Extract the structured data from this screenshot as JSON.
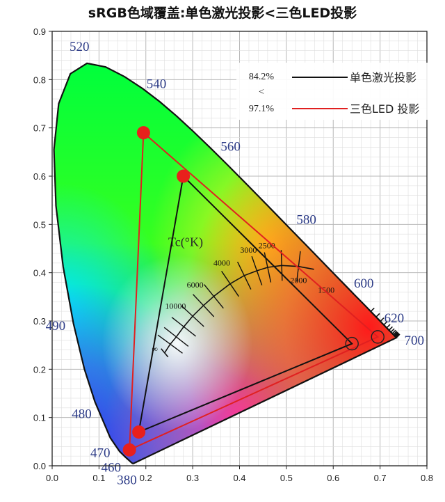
{
  "chart_data": {
    "type": "scatter",
    "title": "sRGB色域覆盖:单色激光投影<三色LED投影",
    "xlim": [
      0.0,
      0.8
    ],
    "ylim": [
      0.0,
      0.9
    ],
    "x_ticks": [
      "0.0",
      "0.1",
      "0.2",
      "0.3",
      "0.4",
      "0.5",
      "0.6",
      "0.7",
      "0.8"
    ],
    "y_ticks": [
      "0.0",
      "0.1",
      "0.2",
      "0.3",
      "0.4",
      "0.5",
      "0.6",
      "0.7",
      "0.8",
      "0.9"
    ],
    "grid": true,
    "legend_placement": "top-right",
    "colors": {
      "laser": "#111111",
      "led": "#e02020",
      "point": "#e8201c"
    },
    "annotation_lines": [
      "84.2%",
      "<",
      "97.1%"
    ],
    "series": [
      {
        "name": "单色激光投影",
        "color": "#111111",
        "points": [
          [
            0.28,
            0.6
          ],
          [
            0.64,
            0.253
          ],
          [
            0.185,
            0.07
          ]
        ]
      },
      {
        "name": "三色LED 投影",
        "color": "#e02020",
        "points": [
          [
            0.195,
            0.69
          ],
          [
            0.695,
            0.267
          ],
          [
            0.165,
            0.033
          ]
        ]
      }
    ],
    "spectral_locus": {
      "points": [
        [
          0.1741,
          0.005
        ],
        [
          0.1738,
          0.0049
        ],
        [
          0.1736,
          0.0049
        ],
        [
          0.1733,
          0.0048
        ],
        [
          0.1726,
          0.0048
        ],
        [
          0.1714,
          0.0051
        ],
        [
          0.1689,
          0.0069
        ],
        [
          0.1644,
          0.0109
        ],
        [
          0.1566,
          0.0177
        ],
        [
          0.144,
          0.0297
        ],
        [
          0.1241,
          0.0578
        ],
        [
          0.0913,
          0.1327
        ],
        [
          0.0687,
          0.2007
        ],
        [
          0.0454,
          0.295
        ],
        [
          0.0235,
          0.4127
        ],
        [
          0.0082,
          0.5384
        ],
        [
          0.0039,
          0.6548
        ],
        [
          0.0139,
          0.7502
        ],
        [
          0.0389,
          0.812
        ],
        [
          0.0743,
          0.8338
        ],
        [
          0.1142,
          0.8262
        ],
        [
          0.1547,
          0.8059
        ],
        [
          0.1929,
          0.7816
        ],
        [
          0.2296,
          0.7543
        ],
        [
          0.2658,
          0.7243
        ],
        [
          0.3016,
          0.6923
        ],
        [
          0.3373,
          0.6589
        ],
        [
          0.3731,
          0.6245
        ],
        [
          0.4087,
          0.5896
        ],
        [
          0.4441,
          0.5547
        ],
        [
          0.4788,
          0.5202
        ],
        [
          0.5125,
          0.4866
        ],
        [
          0.5448,
          0.4544
        ],
        [
          0.5752,
          0.4242
        ],
        [
          0.6029,
          0.3965
        ],
        [
          0.627,
          0.3725
        ],
        [
          0.6482,
          0.3514
        ],
        [
          0.6658,
          0.334
        ],
        [
          0.6801,
          0.3197
        ],
        [
          0.6915,
          0.3083
        ],
        [
          0.7006,
          0.2993
        ],
        [
          0.7079,
          0.292
        ],
        [
          0.714,
          0.2859
        ],
        [
          0.719,
          0.2809
        ],
        [
          0.723,
          0.277
        ],
        [
          0.726,
          0.274
        ],
        [
          0.7283,
          0.2717
        ],
        [
          0.73,
          0.27
        ],
        [
          0.7311,
          0.2689
        ],
        [
          0.732,
          0.268
        ],
        [
          0.7327,
          0.2673
        ],
        [
          0.7334,
          0.2666
        ],
        [
          0.734,
          0.266
        ],
        [
          0.7344,
          0.2656
        ],
        [
          0.7346,
          0.2654
        ],
        [
          0.7347,
          0.2653
        ]
      ],
      "labels": [
        {
          "text": "380",
          "x": 0.1741,
          "y": 0.005
        },
        {
          "text": "460",
          "x": 0.144,
          "y": 0.0297
        },
        {
          "text": "470",
          "x": 0.1241,
          "y": 0.0578
        },
        {
          "text": "480",
          "x": 0.0913,
          "y": 0.1327
        },
        {
          "text": "490",
          "x": 0.0454,
          "y": 0.295
        },
        {
          "text": "520",
          "x": 0.0743,
          "y": 0.8338
        },
        {
          "text": "540",
          "x": 0.2296,
          "y": 0.7543
        },
        {
          "text": "560",
          "x": 0.3731,
          "y": 0.6245
        },
        {
          "text": "580",
          "x": 0.5125,
          "y": 0.4866
        },
        {
          "text": "600",
          "x": 0.627,
          "y": 0.3725
        },
        {
          "text": "620",
          "x": 0.6915,
          "y": 0.3083
        },
        {
          "text": "700",
          "x": 0.7347,
          "y": 0.2653
        }
      ]
    },
    "planckian_locus": {
      "label": "Tc(°K)",
      "points": [
        [
          0.24,
          0.234
        ],
        [
          0.252,
          0.252
        ],
        [
          0.265,
          0.267
        ],
        [
          0.281,
          0.288
        ],
        [
          0.3,
          0.31
        ],
        [
          0.323,
          0.332
        ],
        [
          0.345,
          0.351
        ],
        [
          0.38,
          0.377
        ],
        [
          0.41,
          0.394
        ],
        [
          0.437,
          0.404
        ],
        [
          0.46,
          0.411
        ],
        [
          0.49,
          0.415
        ],
        [
          0.526,
          0.413
        ],
        [
          0.559,
          0.407
        ]
      ],
      "temps": [
        {
          "label": "10000",
          "x": 0.281,
          "y": 0.288
        },
        {
          "label": "6000",
          "x": 0.323,
          "y": 0.332
        },
        {
          "label": "4000",
          "x": 0.38,
          "y": 0.377
        },
        {
          "label": "3000",
          "x": 0.437,
          "y": 0.404
        },
        {
          "label": "2500",
          "x": 0.476,
          "y": 0.413
        },
        {
          "label": "2000",
          "x": 0.526,
          "y": 0.413
        },
        {
          "label": "1500",
          "x": 0.585,
          "y": 0.393
        }
      ],
      "infinity_label": "∞"
    }
  }
}
